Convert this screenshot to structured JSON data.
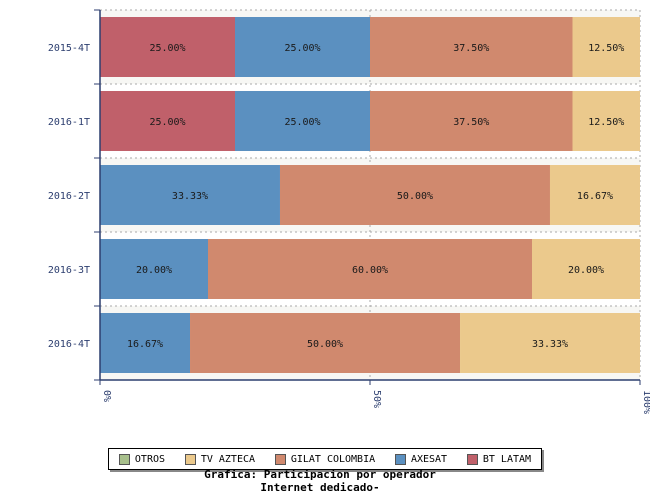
{
  "chart_data": {
    "type": "bar",
    "orientation": "horizontal",
    "stacked": true,
    "categories": [
      "2015-4T",
      "2016-1T",
      "2016-2T",
      "2016-3T",
      "2016-4T"
    ],
    "series": [
      {
        "name": "BT LATAM",
        "color": "#c0606a",
        "values": [
          25.0,
          25.0,
          0,
          0,
          0
        ]
      },
      {
        "name": "AXESAT",
        "color": "#5b90c0",
        "values": [
          25.0,
          25.0,
          33.33,
          20.0,
          16.67
        ]
      },
      {
        "name": "GILAT COLOMBIA",
        "color": "#d0896e",
        "values": [
          37.5,
          37.5,
          50.0,
          60.0,
          50.0
        ]
      },
      {
        "name": "TV AZTECA",
        "color": "#ebc98c",
        "values": [
          12.5,
          12.5,
          16.67,
          20.0,
          33.33
        ]
      },
      {
        "name": "OTROS",
        "color": "#a8c08c",
        "values": [
          0,
          0,
          0,
          0,
          0
        ]
      }
    ],
    "xlim": [
      0,
      100
    ],
    "x_ticks": [
      "0%",
      "50%",
      "100%"
    ],
    "grid": true,
    "legend_position": "bottom"
  },
  "legend": [
    {
      "label": "OTROS",
      "color": "#a8c08c"
    },
    {
      "label": "TV AZTECA",
      "color": "#ebc98c"
    },
    {
      "label": "GILAT COLOMBIA",
      "color": "#d0896e"
    },
    {
      "label": "AXESAT",
      "color": "#5b90c0"
    },
    {
      "label": "BT LATAM",
      "color": "#c0606a"
    }
  ],
  "caption": {
    "line1": "Grafica: Participacion por operador",
    "line2": "Internet dedicado-"
  }
}
